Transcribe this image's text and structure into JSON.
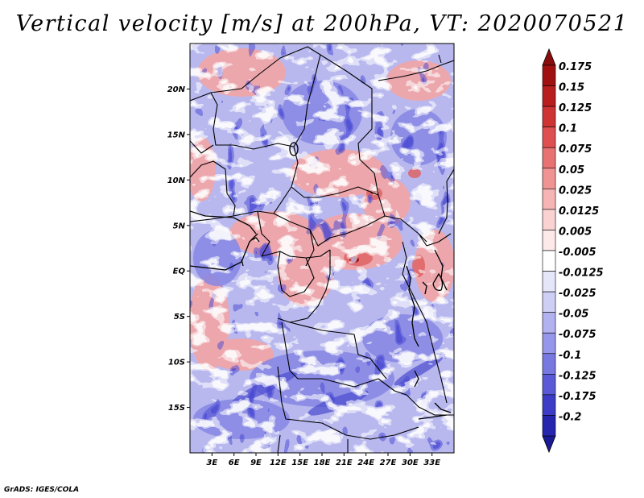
{
  "title": "Vertical velocity [m/s] at 200hPa, VT: 2020070521",
  "credit": "GrADS: IGES/COLA",
  "map": {
    "lon_range": [
      0,
      36
    ],
    "lat_range": [
      -20,
      25
    ],
    "lat_ticks": [
      {
        "value": 20,
        "label": "20N"
      },
      {
        "value": 15,
        "label": "15N"
      },
      {
        "value": 10,
        "label": "10N"
      },
      {
        "value": 5,
        "label": "5N"
      },
      {
        "value": 0,
        "label": "EQ"
      },
      {
        "value": -5,
        "label": "5S"
      },
      {
        "value": -10,
        "label": "10S"
      },
      {
        "value": -15,
        "label": "15S"
      }
    ],
    "lon_ticks": [
      {
        "value": 3,
        "label": "3E"
      },
      {
        "value": 6,
        "label": "6E"
      },
      {
        "value": 9,
        "label": "9E"
      },
      {
        "value": 12,
        "label": "12E"
      },
      {
        "value": 15,
        "label": "15E"
      },
      {
        "value": 18,
        "label": "18E"
      },
      {
        "value": 21,
        "label": "21E"
      },
      {
        "value": 24,
        "label": "24E"
      },
      {
        "value": 27,
        "label": "27E"
      },
      {
        "value": 30,
        "label": "30E"
      },
      {
        "value": 33,
        "label": "33E"
      }
    ]
  },
  "colorbar": {
    "levels": [
      {
        "label": "0.175",
        "color": "#a01010"
      },
      {
        "label": "0.15",
        "color": "#b81e1e"
      },
      {
        "label": "0.125",
        "color": "#cf3434"
      },
      {
        "label": "0.1",
        "color": "#df4f4f"
      },
      {
        "label": "0.075",
        "color": "#e87272"
      },
      {
        "label": "0.05",
        "color": "#f09393"
      },
      {
        "label": "0.025",
        "color": "#f6b4b4"
      },
      {
        "label": "0.0125",
        "color": "#fad2d2"
      },
      {
        "label": "0.005",
        "color": "#fde9e9"
      },
      {
        "label": "-0.005",
        "color": "#ffffff"
      },
      {
        "label": "-0.0125",
        "color": "#e6e6fb"
      },
      {
        "label": "-0.025",
        "color": "#cfcff6"
      },
      {
        "label": "-0.05",
        "color": "#b2b2f0"
      },
      {
        "label": "-0.075",
        "color": "#9696ea"
      },
      {
        "label": "-0.1",
        "color": "#7878e1"
      },
      {
        "label": "-0.125",
        "color": "#5a5ad6"
      },
      {
        "label": "-0.175",
        "color": "#3c3cc6"
      },
      {
        "label": "-0.2",
        "color": "#2525ae"
      }
    ],
    "top_arrow_color": "#8a0d0d",
    "bottom_arrow_color": "#1a1a96"
  }
}
